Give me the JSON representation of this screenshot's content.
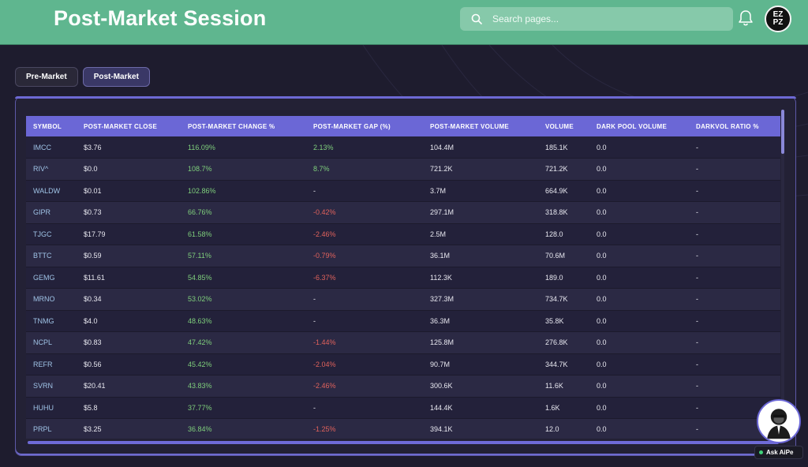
{
  "header": {
    "title": "Post-Market Session",
    "search_placeholder": "Search pages...",
    "avatar_text_top": "EZ",
    "avatar_text_bottom": "PZ"
  },
  "tabs": [
    {
      "label": "Pre-Market",
      "active": false
    },
    {
      "label": "Post-Market",
      "active": true
    }
  ],
  "table": {
    "columns": [
      "SYMBOL",
      "POST-MARKET CLOSE",
      "POST-MARKET CHANGE %",
      "POST-MARKET GAP (%)",
      "POST-MARKET VOLUME",
      "VOLUME",
      "DARK POOL VOLUME",
      "DARKVOL RATIO %"
    ],
    "rows": [
      [
        "IMCC",
        "$3.76",
        "116.09%",
        "2.13%",
        "104.4M",
        "185.1K",
        "0.0",
        "-"
      ],
      [
        "RIV^",
        "$0.0",
        "108.7%",
        "8.7%",
        "721.2K",
        "721.2K",
        "0.0",
        "-"
      ],
      [
        "WALDW",
        "$0.01",
        "102.86%",
        "-",
        "3.7M",
        "664.9K",
        "0.0",
        "-"
      ],
      [
        "GIPR",
        "$0.73",
        "66.76%",
        "-0.42%",
        "297.1M",
        "318.8K",
        "0.0",
        "-"
      ],
      [
        "TJGC",
        "$17.79",
        "61.58%",
        "-2.46%",
        "2.5M",
        "128.0",
        "0.0",
        "-"
      ],
      [
        "BTTC",
        "$0.59",
        "57.11%",
        "-0.79%",
        "36.1M",
        "70.6M",
        "0.0",
        "-"
      ],
      [
        "GEMG",
        "$11.61",
        "54.85%",
        "-6.37%",
        "112.3K",
        "189.0",
        "0.0",
        "-"
      ],
      [
        "MRNO",
        "$0.34",
        "53.02%",
        "-",
        "327.3M",
        "734.7K",
        "0.0",
        "-"
      ],
      [
        "TNMG",
        "$4.0",
        "48.63%",
        "-",
        "36.3M",
        "35.8K",
        "0.0",
        "-"
      ],
      [
        "NCPL",
        "$0.83",
        "47.42%",
        "-1.44%",
        "125.8M",
        "276.8K",
        "0.0",
        "-"
      ],
      [
        "REFR",
        "$0.56",
        "45.42%",
        "-2.04%",
        "90.7M",
        "344.7K",
        "0.0",
        "-"
      ],
      [
        "SVRN",
        "$20.41",
        "43.83%",
        "-2.46%",
        "300.6K",
        "11.6K",
        "0.0",
        "-"
      ],
      [
        "HUHU",
        "$5.8",
        "37.77%",
        "-",
        "144.4K",
        "1.6K",
        "0.0",
        "-"
      ],
      [
        "PRPL",
        "$3.25",
        "36.84%",
        "-1.25%",
        "394.1K",
        "12.0",
        "0.0",
        "-"
      ]
    ]
  },
  "assistant": {
    "label": "Ask AiPe"
  },
  "colors": {
    "header": "#5fb68f",
    "accent": "#6b67d6",
    "positive": "#7fcf7c",
    "negative": "#e0625c",
    "symbol": "#9fc3e6"
  }
}
